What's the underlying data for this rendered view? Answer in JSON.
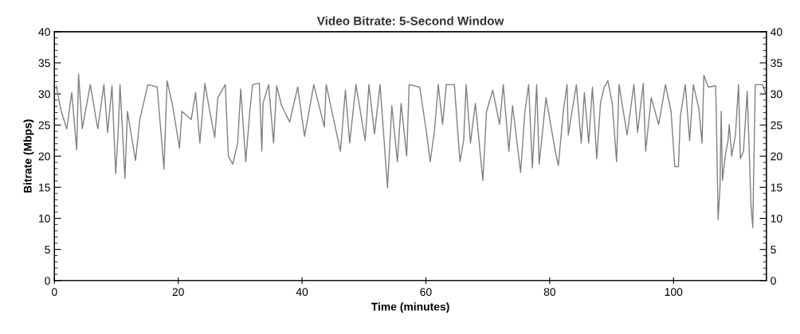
{
  "chart_data": {
    "type": "line",
    "title": "Video Bitrate: 5-Second Window",
    "xlabel": "Time (minutes)",
    "ylabel": "Bitrate (Mbps)",
    "xlim": [
      0,
      115
    ],
    "xticks": [
      0,
      20,
      40,
      60,
      80,
      100
    ],
    "ylim": [
      0,
      40
    ],
    "yticks": [
      0,
      5,
      10,
      15,
      20,
      25,
      30,
      35,
      40
    ],
    "y2lim": [
      0,
      40
    ],
    "y2ticks": [
      0,
      5,
      10,
      15,
      20,
      25,
      30,
      35,
      40
    ],
    "grid": false,
    "line_style": "solid",
    "marker": "none",
    "series": [
      {
        "color": "#808080",
        "x": [
          0.3,
          1.1,
          2.0,
          2.8,
          3.6,
          3.9,
          4.5,
          5.8,
          7.0,
          8.0,
          8.6,
          9.3,
          9.9,
          10.3,
          10.6,
          11.4,
          11.8,
          13.1,
          13.8,
          14.4,
          15.1,
          16.6,
          17.7,
          18.2,
          19.1,
          20.2,
          20.6,
          22.1,
          22.8,
          23.5,
          24.3,
          25.1,
          25.9,
          26.4,
          27.6,
          28.1,
          28.8,
          29.6,
          30.1,
          30.9,
          31.6,
          32.0,
          33.1,
          33.5,
          33.7,
          34.6,
          35.4,
          35.9,
          36.7,
          38.0,
          39.3,
          40.4,
          41.9,
          43.6,
          43.9,
          46.2,
          47.0,
          47.7,
          48.7,
          50.2,
          50.8,
          51.7,
          52.6,
          53.8,
          54.5,
          55.4,
          56.0,
          56.9,
          57.3,
          59.0,
          60.1,
          60.7,
          61.4,
          62.0,
          62.7,
          63.3,
          64.6,
          65.5,
          66.1,
          66.5,
          67.2,
          68.0,
          69.2,
          69.8,
          70.8,
          71.9,
          72.5,
          73.4,
          74.0,
          75.3,
          76.0,
          76.6,
          77.2,
          77.9,
          78.3,
          79.4,
          80.9,
          81.4,
          82.2,
          82.8,
          83.0,
          84.3,
          85.1,
          85.6,
          86.3,
          86.9,
          87.6,
          88.2,
          88.8,
          89.4,
          90.1,
          90.8,
          91.2,
          92.5,
          93.6,
          94.2,
          95.1,
          95.5,
          96.4,
          97.6,
          98.7,
          99.6,
          100.2,
          100.8,
          101.1,
          101.9,
          102.6,
          103.2,
          104.1,
          104.6,
          104.9,
          105.6,
          106.8,
          106.9,
          107.2,
          107.5,
          107.7,
          107.9,
          108.4,
          108.8,
          109.0,
          109.4,
          110.0,
          110.5,
          110.8,
          111.3,
          111.9,
          112.3,
          112.5,
          112.8,
          113.2,
          114.4,
          114.8
        ],
        "values": [
          31.3,
          27.2,
          24.4,
          30.2,
          21.0,
          33.2,
          24.4,
          31.5,
          24.4,
          31.5,
          23.8,
          31.3,
          17.2,
          23.8,
          31.5,
          16.4,
          27.2,
          19.3,
          25.9,
          28.5,
          31.5,
          31.1,
          17.9,
          32.1,
          28.1,
          21.3,
          27.2,
          25.9,
          30.2,
          22.1,
          31.7,
          27.2,
          23.0,
          29.4,
          31.5,
          20.0,
          18.7,
          22.1,
          30.8,
          19.1,
          27.6,
          31.5,
          31.7,
          20.8,
          28.5,
          31.5,
          22.1,
          31.3,
          28.1,
          25.5,
          31.1,
          23.2,
          31.5,
          24.7,
          31.5,
          20.8,
          30.6,
          22.1,
          31.5,
          22.5,
          31.5,
          23.6,
          31.5,
          14.9,
          28.1,
          19.1,
          28.5,
          20.0,
          31.5,
          31.1,
          23.8,
          19.1,
          24.2,
          31.5,
          25.1,
          31.5,
          31.5,
          19.1,
          22.5,
          31.5,
          22.1,
          28.5,
          16.1,
          27.2,
          30.6,
          25.1,
          31.5,
          20.8,
          28.1,
          17.4,
          27.2,
          31.5,
          18.1,
          31.5,
          18.7,
          29.4,
          20.8,
          18.5,
          27.2,
          31.5,
          23.4,
          31.5,
          22.1,
          30.2,
          22.1,
          31.1,
          19.6,
          28.5,
          31.1,
          32.1,
          28.5,
          19.1,
          31.5,
          23.4,
          31.5,
          23.8,
          31.7,
          20.8,
          29.4,
          25.1,
          31.5,
          27.2,
          18.3,
          18.3,
          26.4,
          31.5,
          22.5,
          31.5,
          27.6,
          22.1,
          33.0,
          31.1,
          31.3,
          27.2,
          9.8,
          14.9,
          27.2,
          16.1,
          20.4,
          22.5,
          25.1,
          20.0,
          23.4,
          31.5,
          19.6,
          20.8,
          30.4,
          18.7,
          12.3,
          8.5,
          31.5,
          31.5,
          30.2
        ]
      }
    ]
  }
}
